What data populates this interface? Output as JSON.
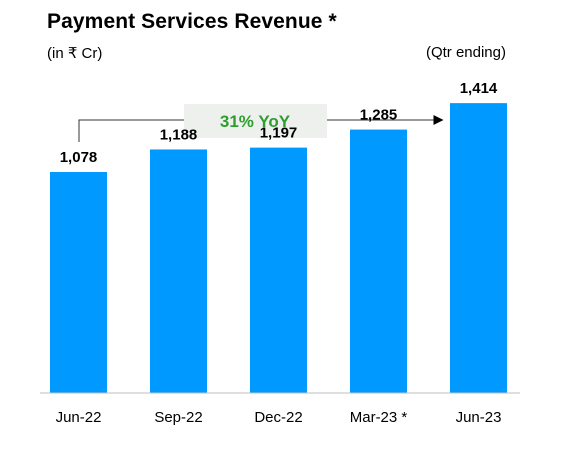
{
  "header": {
    "title": "Payment Services Revenue *",
    "unit": "(in ₹ Cr)",
    "period": "(Qtr ending)"
  },
  "growth_callout": "31% YoY",
  "colors": {
    "bar": "#0099ff",
    "callout_text": "#2e9e2e",
    "callout_box": "#eef0ee"
  },
  "chart_data": {
    "type": "bar",
    "title": "Payment Services Revenue *",
    "categories": [
      "Jun-22",
      "Sep-22",
      "Dec-22",
      "Mar-23 *",
      "Jun-23"
    ],
    "values": [
      1078,
      1188,
      1197,
      1285,
      1414
    ],
    "value_labels": [
      "1,078",
      "1,188",
      "1,197",
      "1,285",
      "1,414"
    ],
    "ylabel": "",
    "xlabel": "",
    "grid": false,
    "annotations": [
      {
        "text": "31% YoY",
        "from": "Jun-22",
        "to": "Jun-23"
      }
    ]
  }
}
